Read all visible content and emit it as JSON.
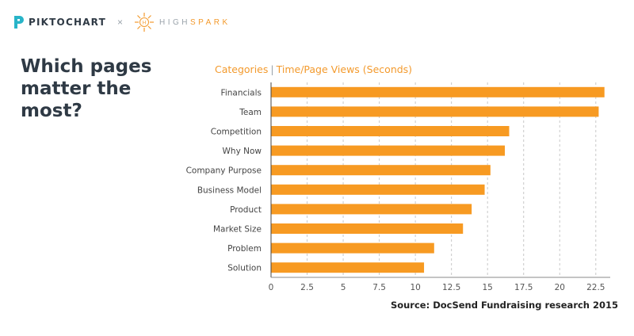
{
  "brand": {
    "piktochart": "PIKTOCHART",
    "separator": "×",
    "highspark_1": "HIGH",
    "highspark_2": "SPARK",
    "highspark_mark": "H"
  },
  "headline": "Which pages matter the most?",
  "legend": {
    "categories": "Categories",
    "divider": "|",
    "measure": "Time/Page Views (Seconds)"
  },
  "source": "Source: DocSend Fundraising research 2015",
  "colors": {
    "bar": "#f79a22",
    "text": "#2f3a45",
    "accent": "#f39a2d",
    "grid": "#c8c8c8"
  },
  "chart_data": {
    "type": "bar",
    "orientation": "horizontal",
    "categories": [
      "Financials",
      "Team",
      "Competition",
      "Why Now",
      "Company Purpose",
      "Business Model",
      "Product",
      "Market Size",
      "Problem",
      "Solution"
    ],
    "values": [
      23.1,
      22.7,
      16.5,
      16.2,
      15.2,
      14.8,
      13.9,
      13.3,
      11.3,
      10.6
    ],
    "xlim": [
      0,
      23.5
    ],
    "xticks": [
      "0",
      "2.5",
      "5",
      "7.5",
      "10",
      "12.5",
      "15",
      "17.5",
      "20",
      "22.5"
    ],
    "grid": true
  }
}
